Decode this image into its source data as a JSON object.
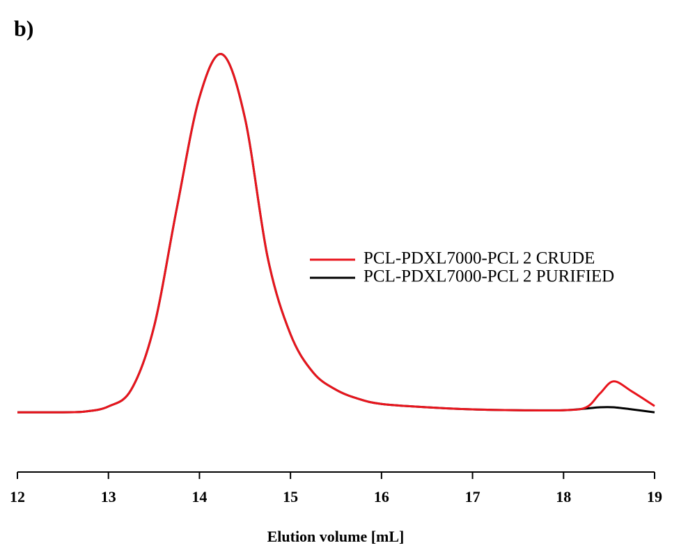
{
  "chart_data": {
    "type": "line",
    "panel_label": "b)",
    "xlabel": "Elution volume [mL]",
    "x": [
      12,
      12.5,
      12.75,
      13,
      13.25,
      13.5,
      13.75,
      14,
      14.25,
      14.5,
      14.75,
      15,
      15.25,
      15.5,
      15.75,
      16,
      16.5,
      17,
      17.5,
      18,
      18.25,
      18.4,
      18.55,
      18.75,
      19
    ],
    "series": [
      {
        "name": "PCL-PDXL7000-PCL 2 PURIFIED",
        "color": "#000000",
        "values": [
          0.143,
          0.143,
          0.145,
          0.157,
          0.197,
          0.347,
          0.63,
          0.897,
          1.0,
          0.847,
          0.513,
          0.33,
          0.238,
          0.197,
          0.175,
          0.163,
          0.155,
          0.15,
          0.148,
          0.148,
          0.152,
          0.155,
          0.155,
          0.15,
          0.143
        ]
      },
      {
        "name": "PCL-PDXL7000-PCL 2 CRUDE",
        "color": "#e8141c",
        "values": [
          0.143,
          0.143,
          0.145,
          0.157,
          0.197,
          0.347,
          0.63,
          0.897,
          1.0,
          0.847,
          0.513,
          0.33,
          0.238,
          0.197,
          0.175,
          0.163,
          0.155,
          0.15,
          0.148,
          0.148,
          0.155,
          0.188,
          0.217,
          0.193,
          0.158
        ]
      }
    ],
    "xlim": [
      12,
      19
    ],
    "xticks": [
      12,
      13,
      14,
      15,
      16,
      17,
      18,
      19
    ],
    "ylim": [
      0,
      1
    ]
  }
}
